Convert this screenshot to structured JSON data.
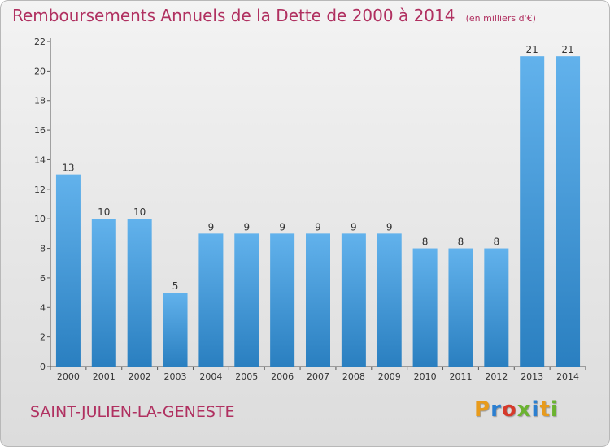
{
  "chart_data": {
    "type": "bar",
    "title": "Remboursements Annuels de la Dette de 2000 à 2014",
    "units": "(en milliers d'€)",
    "categories": [
      "2000",
      "2001",
      "2002",
      "2003",
      "2004",
      "2005",
      "2006",
      "2007",
      "2008",
      "2009",
      "2010",
      "2011",
      "2012",
      "2013",
      "2014"
    ],
    "values": [
      13,
      10,
      10,
      5,
      9,
      9,
      9,
      9,
      9,
      9,
      8,
      8,
      8,
      21,
      21
    ],
    "ylim": [
      0,
      22
    ],
    "yticks": [
      0,
      2,
      4,
      6,
      8,
      10,
      12,
      14,
      16,
      18,
      20,
      22
    ],
    "grid": false,
    "bar_color": "#3a93d6"
  },
  "footer": {
    "commune": "SAINT-JULIEN-LA-GENESTE",
    "logo_letters": [
      {
        "char": "P",
        "color": "#e89b1c"
      },
      {
        "char": "r",
        "color": "#2b7fd1"
      },
      {
        "char": "o",
        "color": "#d63a2b"
      },
      {
        "char": "x",
        "color": "#6bb330"
      },
      {
        "char": "i",
        "color": "#2b7fd1"
      },
      {
        "char": "t",
        "color": "#e89b1c"
      },
      {
        "char": "i",
        "color": "#6bb330"
      }
    ]
  }
}
